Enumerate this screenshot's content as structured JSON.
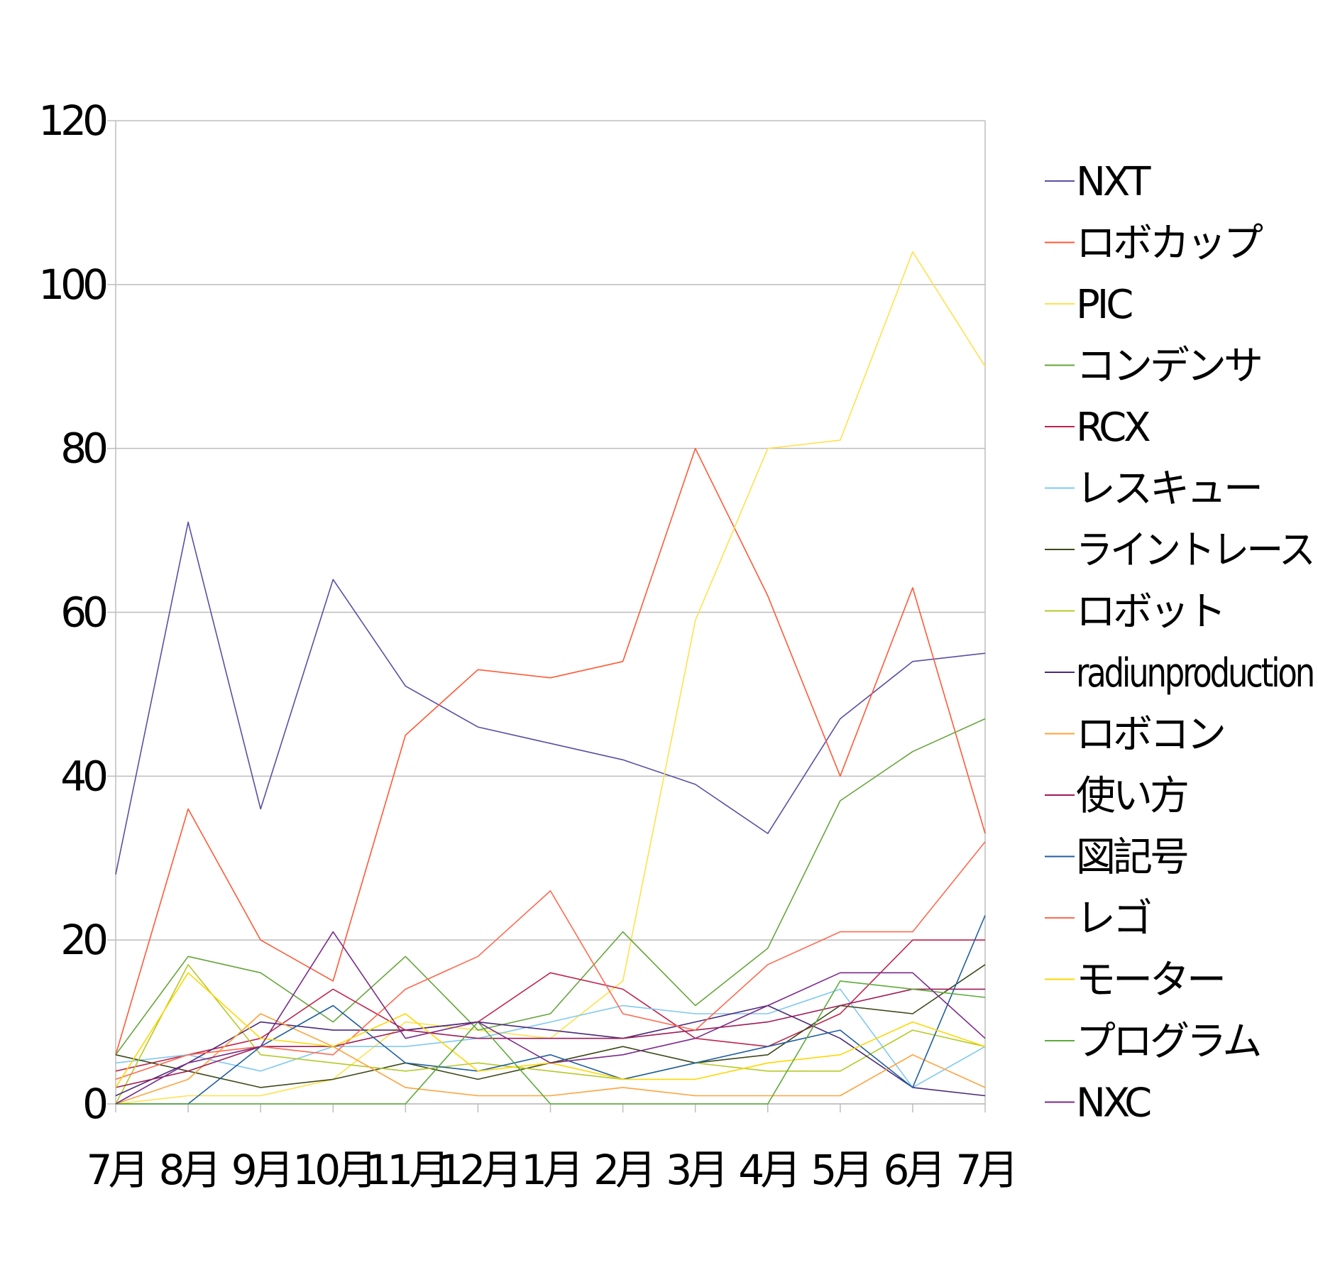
{
  "chart_data": {
    "type": "line",
    "categories": [
      "7月",
      "8月",
      "9月",
      "10月",
      "11月",
      "12月",
      "1月",
      "2月",
      "3月",
      "4月",
      "5月",
      "6月",
      "7月"
    ],
    "ylim": [
      0,
      120
    ],
    "yticks": [
      "0",
      "20",
      "40",
      "60",
      "80",
      "100",
      "120"
    ],
    "grid": true,
    "legend_position": "right",
    "series": [
      {
        "name": "NXT",
        "color": "#5b4ea3",
        "values": [
          28,
          71,
          36,
          64,
          51,
          46,
          44,
          42,
          39,
          33,
          47,
          54,
          55
        ]
      },
      {
        "name": "ロボカップ",
        "color": "#ff5a36",
        "values": [
          6,
          36,
          20,
          15,
          45,
          53,
          52,
          54,
          80,
          62,
          40,
          63,
          33
        ]
      },
      {
        "name": "PIC",
        "color": "#ffe14d",
        "values": [
          0,
          1,
          1,
          3,
          10,
          9,
          8,
          15,
          59,
          80,
          81,
          104,
          90
        ]
      },
      {
        "name": "コンデンサ",
        "color": "#66a53b",
        "values": [
          6,
          18,
          16,
          10,
          18,
          9,
          11,
          21,
          12,
          19,
          37,
          43,
          47
        ]
      },
      {
        "name": "RCX",
        "color": "#c0244d",
        "values": [
          4,
          6,
          8,
          14,
          9,
          10,
          16,
          14,
          8,
          7,
          11,
          20,
          20
        ]
      },
      {
        "name": "レスキュー",
        "color": "#7fc8f0",
        "values": [
          5,
          6,
          4,
          7,
          7,
          8,
          10,
          12,
          11,
          11,
          14,
          2,
          7
        ]
      },
      {
        "name": "ライントレース",
        "color": "#3d4a1a",
        "values": [
          6,
          4,
          2,
          3,
          5,
          3,
          5,
          7,
          5,
          6,
          12,
          11,
          17
        ]
      },
      {
        "name": "ロボット",
        "color": "#b5c928",
        "values": [
          0,
          17,
          6,
          5,
          4,
          5,
          4,
          3,
          5,
          4,
          4,
          9,
          7
        ]
      },
      {
        "name": "radiunproduction",
        "color": "#4a2a7a",
        "values": [
          1,
          5,
          10,
          9,
          9,
          10,
          9,
          8,
          10,
          12,
          8,
          2,
          1
        ]
      },
      {
        "name": "ロボコン",
        "color": "#ffa23a",
        "values": [
          0,
          3,
          11,
          7,
          2,
          1,
          1,
          2,
          1,
          1,
          1,
          6,
          2
        ]
      },
      {
        "name": "使い方",
        "color": "#a01a55",
        "values": [
          2,
          4,
          7,
          7,
          9,
          8,
          8,
          8,
          9,
          10,
          12,
          14,
          14
        ]
      },
      {
        "name": "図記号",
        "color": "#1f5ea0",
        "values": [
          0,
          0,
          7,
          12,
          5,
          4,
          6,
          3,
          5,
          7,
          9,
          2,
          23
        ]
      },
      {
        "name": "レゴ",
        "color": "#ff6a50",
        "values": [
          3,
          6,
          7,
          6,
          14,
          18,
          26,
          11,
          9,
          17,
          21,
          21,
          32
        ]
      },
      {
        "name": "モーター",
        "color": "#ffd700",
        "values": [
          2,
          16,
          8,
          7,
          11,
          4,
          5,
          3,
          3,
          5,
          6,
          10,
          7
        ]
      },
      {
        "name": "プログラム",
        "color": "#5cab3a",
        "values": [
          0,
          0,
          0,
          0,
          0,
          10,
          0,
          0,
          0,
          0,
          15,
          14,
          13
        ]
      },
      {
        "name": "NXC",
        "color": "#7b2a8a",
        "values": [
          0,
          5,
          7,
          21,
          8,
          10,
          5,
          6,
          8,
          12,
          16,
          16,
          8
        ]
      }
    ]
  }
}
